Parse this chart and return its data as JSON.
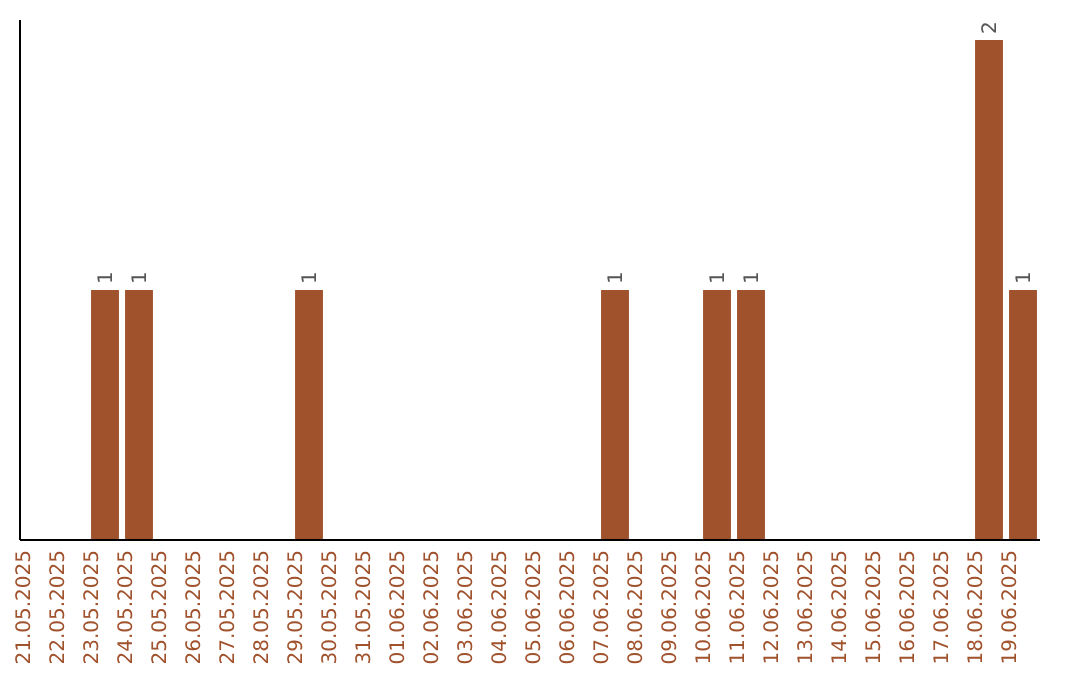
{
  "chart_data": {
    "type": "bar",
    "categories": [
      "21.05.2025",
      "22.05.2025",
      "23.05.2025",
      "24.05.2025",
      "25.05.2025",
      "26.05.2025",
      "27.05.2025",
      "28.05.2025",
      "29.05.2025",
      "30.05.2025",
      "31.05.2025",
      "01.06.2025",
      "02.06.2025",
      "03.06.2025",
      "04.06.2025",
      "05.06.2025",
      "06.06.2025",
      "07.06.2025",
      "08.06.2025",
      "09.06.2025",
      "10.06.2025",
      "11.06.2025",
      "12.06.2025",
      "13.06.2025",
      "14.06.2025",
      "15.06.2025",
      "16.06.2025",
      "17.06.2025",
      "18.06.2025",
      "19.06.2025"
    ],
    "values": [
      0,
      0,
      1,
      1,
      0,
      0,
      0,
      0,
      1,
      0,
      0,
      0,
      0,
      0,
      0,
      0,
      0,
      1,
      0,
      0,
      1,
      1,
      0,
      0,
      0,
      0,
      0,
      0,
      2,
      1
    ],
    "value_labels": [
      null,
      null,
      "1",
      "1",
      null,
      null,
      null,
      null,
      "1",
      null,
      null,
      null,
      null,
      null,
      null,
      null,
      null,
      "1",
      null,
      null,
      "1",
      "1",
      null,
      null,
      null,
      null,
      null,
      null,
      "2",
      "1"
    ],
    "color": "#a0522d",
    "ylim": [
      0,
      2
    ],
    "tick_labels": "x"
  }
}
